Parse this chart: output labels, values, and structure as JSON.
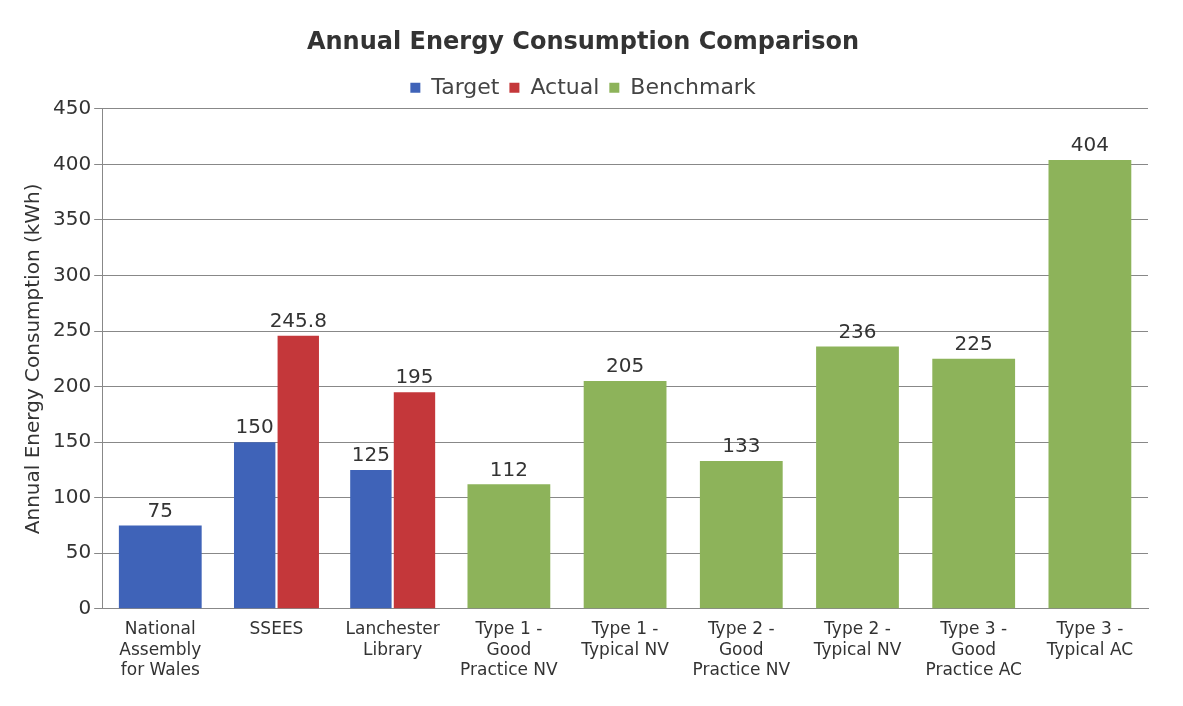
{
  "chart_data": {
    "type": "bar",
    "title": "Annual Energy Consumption Comparison",
    "ylabel": "Annual Energy Consumption (kWh)",
    "categories": [
      "National Assembly for Wales",
      "SSEES",
      "Lanchester Library",
      "Type 1 - Good Practice NV",
      "Type 1 - Typical NV",
      "Type 2 - Good Practice NV",
      "Type 2 - Typical NV",
      "Type 3 - Good Practice AC",
      "Type 3 - Typical AC"
    ],
    "series": [
      {
        "name": "Target",
        "color": "#3f63b8",
        "values": [
          75,
          150,
          125,
          null,
          null,
          null,
          null,
          null,
          null
        ]
      },
      {
        "name": "Actual",
        "color": "#c4373a",
        "values": [
          null,
          245.8,
          195,
          null,
          null,
          null,
          null,
          null,
          null
        ]
      },
      {
        "name": "Benchmark",
        "color": "#8db35a",
        "values": [
          null,
          null,
          null,
          112,
          205,
          133,
          236,
          225,
          404
        ]
      }
    ],
    "ylim": [
      0,
      450
    ],
    "yticks": [
      0,
      50,
      100,
      150,
      200,
      250,
      300,
      350,
      400,
      450
    ],
    "grid": "y",
    "legend": "top",
    "data_labels": true
  }
}
